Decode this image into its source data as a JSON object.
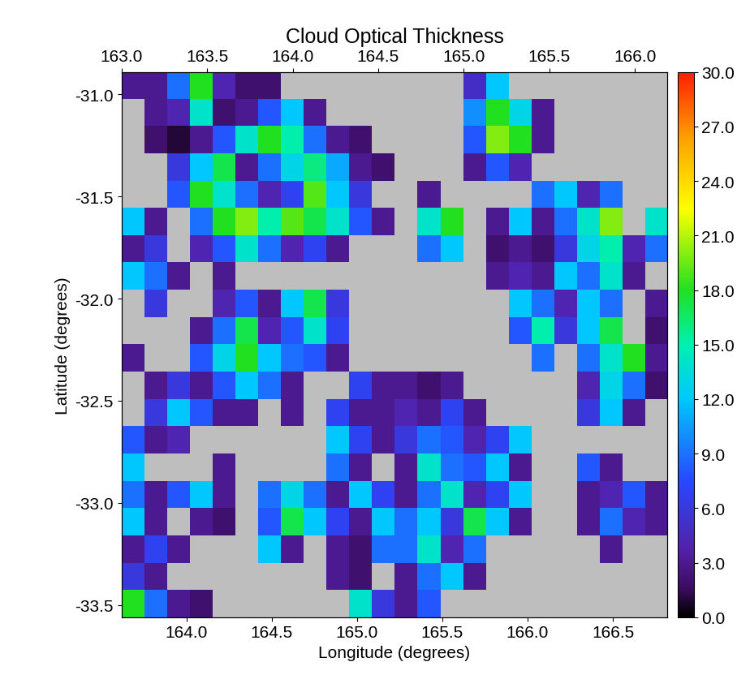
{
  "chart_data": {
    "type": "heatmap",
    "title": "Cloud Optical Thickness",
    "xlabel": "Longitude (degrees)",
    "ylabel": "Latitude (degrees)",
    "xlim": [
      163.62,
      166.82
    ],
    "xticks": [
      {
        "value": 164.0,
        "label": "164.0"
      },
      {
        "value": 164.5,
        "label": "164.5"
      },
      {
        "value": 165.0,
        "label": "165.0"
      },
      {
        "value": 165.5,
        "label": "165.5"
      },
      {
        "value": 166.0,
        "label": "166.0"
      },
      {
        "value": 166.5,
        "label": "166.5"
      }
    ],
    "x2lim": [
      163.0,
      166.19
    ],
    "x2ticks": [
      {
        "value": 163.0,
        "label": "163.0"
      },
      {
        "value": 163.5,
        "label": "163.5"
      },
      {
        "value": 164.0,
        "label": "164.0"
      },
      {
        "value": 164.5,
        "label": "164.5"
      },
      {
        "value": 165.0,
        "label": "165.0"
      },
      {
        "value": 165.5,
        "label": "165.5"
      },
      {
        "value": 166.0,
        "label": "166.0"
      }
    ],
    "ylim": [
      -33.56,
      -30.89
    ],
    "yticks": [
      {
        "value": -31.0,
        "label": "-31.0"
      },
      {
        "value": -31.5,
        "label": "-31.5"
      },
      {
        "value": -32.0,
        "label": "-32.0"
      },
      {
        "value": -32.5,
        "label": "-32.5"
      },
      {
        "value": -33.0,
        "label": "-33.0"
      },
      {
        "value": -33.5,
        "label": "-33.5"
      }
    ],
    "colorbar": {
      "range": [
        0,
        30
      ],
      "ticks": [
        {
          "value": 0,
          "label": "0.0"
        },
        {
          "value": 3,
          "label": "3.0"
        },
        {
          "value": 6,
          "label": "6.0"
        },
        {
          "value": 9,
          "label": "9.0"
        },
        {
          "value": 12,
          "label": "12.0"
        },
        {
          "value": 15,
          "label": "15.0"
        },
        {
          "value": 18,
          "label": "18.0"
        },
        {
          "value": 21,
          "label": "21.0"
        },
        {
          "value": 24,
          "label": "24.0"
        },
        {
          "value": 27,
          "label": "27.0"
        },
        {
          "value": 30,
          "label": "30.0"
        }
      ]
    },
    "cells": [
      [
        3,
        3,
        9,
        18,
        4,
        2,
        2,
        null,
        null,
        null,
        null,
        null,
        null,
        null,
        null,
        5,
        12,
        null,
        null,
        null,
        null,
        null,
        null,
        null
      ],
      [
        null,
        3,
        4,
        14,
        2,
        3,
        8,
        12,
        3,
        null,
        null,
        null,
        null,
        null,
        null,
        10,
        18,
        13,
        3,
        null,
        null,
        null,
        null,
        null
      ],
      [
        null,
        2,
        1,
        3,
        8,
        14,
        18,
        15,
        9,
        3,
        2,
        null,
        null,
        null,
        null,
        8,
        20,
        18,
        3,
        null,
        null,
        null,
        null,
        null
      ],
      [
        null,
        null,
        6,
        12,
        17,
        3,
        9,
        13,
        16,
        11,
        3,
        2,
        null,
        null,
        null,
        3,
        8,
        4,
        null,
        null,
        null,
        null,
        null,
        null
      ],
      [
        null,
        null,
        8,
        18,
        14,
        9,
        4,
        7,
        19,
        12,
        6,
        null,
        null,
        3,
        null,
        null,
        null,
        null,
        9,
        12,
        4,
        9,
        null,
        null
      ],
      [
        12,
        3,
        null,
        9,
        18,
        20,
        15,
        19,
        17,
        14,
        8,
        3,
        null,
        14,
        18,
        null,
        3,
        12,
        3,
        9,
        14,
        20,
        null,
        14
      ],
      [
        3,
        6,
        null,
        4,
        8,
        14,
        9,
        4,
        7,
        3,
        null,
        null,
        null,
        9,
        12,
        null,
        2,
        3,
        2,
        6,
        13,
        15,
        4,
        9
      ],
      [
        12,
        9,
        3,
        null,
        3,
        null,
        null,
        null,
        null,
        null,
        null,
        null,
        null,
        null,
        null,
        null,
        3,
        4,
        3,
        12,
        9,
        14,
        3,
        null
      ],
      [
        null,
        6,
        null,
        null,
        4,
        8,
        3,
        12,
        17,
        6,
        null,
        null,
        null,
        null,
        null,
        null,
        null,
        12,
        9,
        4,
        12,
        9,
        null,
        3
      ],
      [
        null,
        null,
        null,
        3,
        9,
        17,
        4,
        8,
        14,
        7,
        null,
        null,
        null,
        null,
        null,
        null,
        null,
        8,
        15,
        6,
        12,
        17,
        null,
        2
      ],
      [
        3,
        null,
        null,
        8,
        13,
        18,
        12,
        9,
        8,
        3,
        null,
        null,
        null,
        null,
        null,
        null,
        null,
        null,
        9,
        null,
        9,
        14,
        18,
        3
      ],
      [
        null,
        3,
        6,
        3,
        8,
        12,
        9,
        3,
        null,
        null,
        7,
        3,
        3,
        2,
        3,
        null,
        null,
        null,
        null,
        null,
        4,
        13,
        9,
        2
      ],
      [
        null,
        6,
        12,
        8,
        3,
        3,
        null,
        3,
        null,
        7,
        3,
        3,
        4,
        3,
        7,
        3,
        null,
        null,
        null,
        null,
        6,
        12,
        3,
        null
      ],
      [
        8,
        3,
        4,
        null,
        null,
        null,
        null,
        null,
        null,
        12,
        7,
        3,
        6,
        9,
        8,
        4,
        7,
        12,
        null,
        null,
        null,
        null,
        null,
        null
      ],
      [
        12,
        null,
        null,
        null,
        3,
        null,
        null,
        null,
        null,
        9,
        3,
        null,
        3,
        14,
        9,
        8,
        12,
        3,
        null,
        null,
        8,
        3,
        null,
        null
      ],
      [
        9,
        3,
        8,
        12,
        3,
        null,
        9,
        13,
        9,
        3,
        12,
        7,
        3,
        9,
        14,
        4,
        7,
        12,
        null,
        null,
        3,
        4,
        8,
        3
      ],
      [
        12,
        3,
        null,
        3,
        2,
        null,
        8,
        17,
        12,
        7,
        3,
        12,
        9,
        12,
        6,
        17,
        12,
        3,
        null,
        null,
        3,
        9,
        4,
        3
      ],
      [
        3,
        7,
        3,
        null,
        null,
        null,
        12,
        3,
        null,
        3,
        2,
        9,
        9,
        14,
        4,
        9,
        null,
        null,
        null,
        null,
        null,
        3,
        null,
        null
      ],
      [
        6,
        3,
        null,
        null,
        null,
        null,
        null,
        null,
        null,
        3,
        2,
        null,
        3,
        9,
        12,
        3,
        null,
        null,
        null,
        null,
        null,
        null,
        null,
        null
      ],
      [
        18,
        9,
        3,
        2,
        null,
        null,
        null,
        null,
        null,
        null,
        14,
        6,
        3,
        8,
        null,
        null,
        null,
        null,
        null,
        null,
        null,
        null,
        null,
        null
      ]
    ]
  }
}
